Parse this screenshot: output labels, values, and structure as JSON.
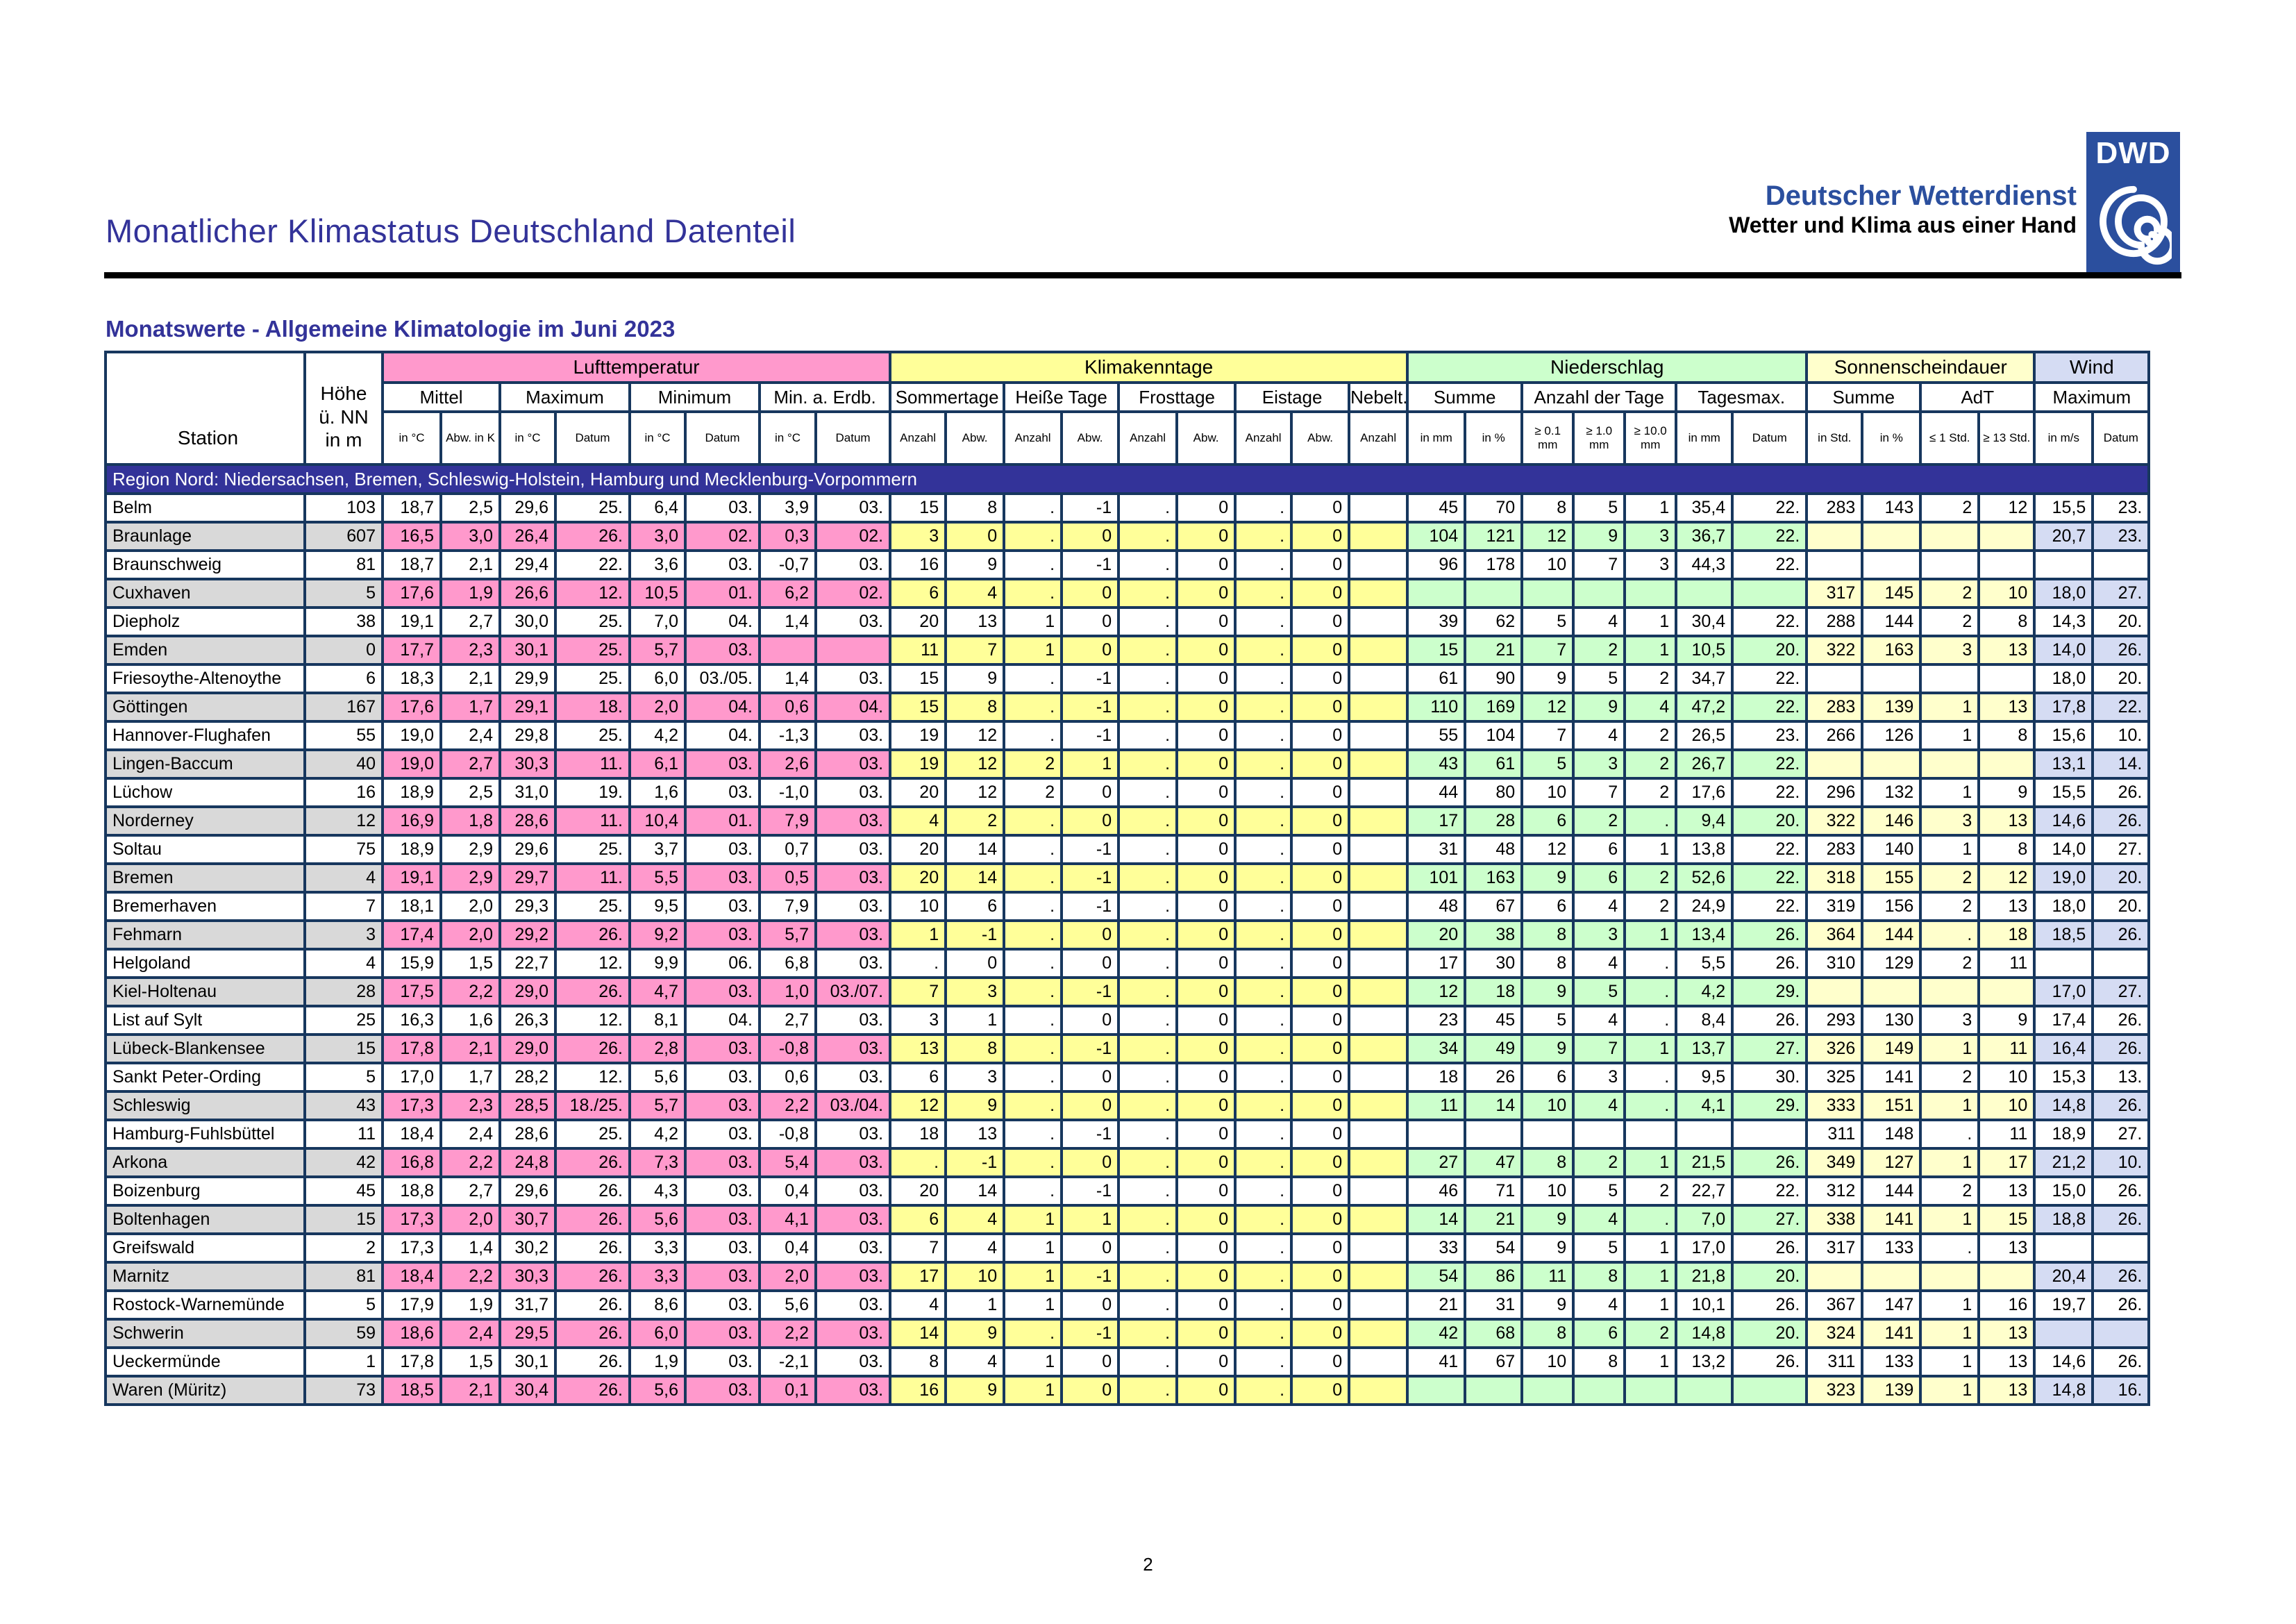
{
  "page": {
    "title": "Monatlicher Klimastatus Deutschland Datenteil",
    "page_number": "2"
  },
  "brand": {
    "org": "Deutscher Wetterdienst",
    "tagline": "Wetter und Klima aus einer Hand",
    "abbr": "DWD"
  },
  "colors": {
    "accent_blue": "#333399",
    "region_blue": "#333399",
    "border": "#17375E",
    "temp_pink": "#FF99CC",
    "klima_yellow": "#FFFF99",
    "nied_green": "#CCFFCC",
    "sonne_pale": "#FFFFCC",
    "wind_blue": "#D5DCF3",
    "station_gray": "#D9D9D9",
    "logo_blue": "#2B4F9E"
  },
  "table": {
    "caption": "Monatswerte - Allgemeine Klimatologie im Juni 2023",
    "station_header": "Station",
    "height_header": "Höhe ü. NN in m",
    "groups": [
      {
        "label": "Lufttemperatur",
        "colspan": 8,
        "key": "temp"
      },
      {
        "label": "Klimakenntage",
        "colspan": 9,
        "key": "klima"
      },
      {
        "label": "Niederschlag",
        "colspan": 7,
        "key": "nied"
      },
      {
        "label": "Sonnenscheindauer",
        "colspan": 4,
        "key": "sonne"
      },
      {
        "label": "Wind",
        "colspan": 2,
        "key": "wind"
      }
    ],
    "subgroups": [
      {
        "label": "Mittel",
        "colspan": 2
      },
      {
        "label": "Maximum",
        "colspan": 2
      },
      {
        "label": "Minimum",
        "colspan": 2
      },
      {
        "label": "Min. a. Erdb.",
        "colspan": 2
      },
      {
        "label": "Sommertage",
        "colspan": 2
      },
      {
        "label": "Heiße Tage",
        "colspan": 2
      },
      {
        "label": "Frosttage",
        "colspan": 2
      },
      {
        "label": "Eistage",
        "colspan": 2
      },
      {
        "label": "Nebelt.",
        "colspan": 1
      },
      {
        "label": "Summe",
        "colspan": 2
      },
      {
        "label": "Anzahl der Tage",
        "colspan": 3
      },
      {
        "label": "Tagesmax.",
        "colspan": 2
      },
      {
        "label": "Summe",
        "colspan": 2
      },
      {
        "label": "AdT",
        "colspan": 2
      },
      {
        "label": "Maximum",
        "colspan": 2
      }
    ],
    "units": [
      "in °C",
      "Abw. in K",
      "in °C",
      "Datum",
      "in °C",
      "Datum",
      "in °C",
      "Datum",
      "Anzahl",
      "Abw.",
      "Anzahl",
      "Abw.",
      "Anzahl",
      "Abw.",
      "Anzahl",
      "Abw.",
      "Anzahl",
      "in mm",
      "in %",
      "≥ 0.1 mm",
      "≥ 1.0 mm",
      "≥ 10.0 mm",
      "in mm",
      "Datum",
      "in Std.",
      "in %",
      "≤ 1 Std.",
      "≥ 13 Std.",
      "in m/s",
      "Datum"
    ],
    "region": "Region Nord: Niedersachsen, Bremen, Schleswig-Holstein, Hamburg und Mecklenburg-Vorpommern",
    "rows": [
      [
        "Belm",
        "103",
        "18,7",
        "2,5",
        "29,6",
        "25.",
        "6,4",
        "03.",
        "3,9",
        "03.",
        "15",
        "8",
        ".",
        "-1",
        ".",
        "0",
        ".",
        "0",
        "",
        "45",
        "70",
        "8",
        "5",
        "1",
        "35,4",
        "22.",
        "283",
        "143",
        "2",
        "12",
        "15,5",
        "23."
      ],
      [
        "Braunlage",
        "607",
        "16,5",
        "3,0",
        "26,4",
        "26.",
        "3,0",
        "02.",
        "0,3",
        "02.",
        "3",
        "0",
        ".",
        "0",
        ".",
        "0",
        ".",
        "0",
        "",
        "104",
        "121",
        "12",
        "9",
        "3",
        "36,7",
        "22.",
        "",
        "",
        "",
        "",
        "20,7",
        "23."
      ],
      [
        "Braunschweig",
        "81",
        "18,7",
        "2,1",
        "29,4",
        "22.",
        "3,6",
        "03.",
        "-0,7",
        "03.",
        "16",
        "9",
        ".",
        "-1",
        ".",
        "0",
        ".",
        "0",
        "",
        "96",
        "178",
        "10",
        "7",
        "3",
        "44,3",
        "22.",
        "",
        "",
        "",
        "",
        "",
        ""
      ],
      [
        "Cuxhaven",
        "5",
        "17,6",
        "1,9",
        "26,6",
        "12.",
        "10,5",
        "01.",
        "6,2",
        "02.",
        "6",
        "4",
        ".",
        "0",
        ".",
        "0",
        ".",
        "0",
        "",
        "",
        "",
        "",
        "",
        "",
        "",
        "",
        "317",
        "145",
        "2",
        "10",
        "18,0",
        "27."
      ],
      [
        "Diepholz",
        "38",
        "19,1",
        "2,7",
        "30,0",
        "25.",
        "7,0",
        "04.",
        "1,4",
        "03.",
        "20",
        "13",
        "1",
        "0",
        ".",
        "0",
        ".",
        "0",
        "",
        "39",
        "62",
        "5",
        "4",
        "1",
        "30,4",
        "22.",
        "288",
        "144",
        "2",
        "8",
        "14,3",
        "20."
      ],
      [
        "Emden",
        "0",
        "17,7",
        "2,3",
        "30,1",
        "25.",
        "5,7",
        "03.",
        "",
        "",
        "11",
        "7",
        "1",
        "0",
        ".",
        "0",
        ".",
        "0",
        "",
        "15",
        "21",
        "7",
        "2",
        "1",
        "10,5",
        "20.",
        "322",
        "163",
        "3",
        "13",
        "14,0",
        "26."
      ],
      [
        "Friesoythe-Altenoythe",
        "6",
        "18,3",
        "2,1",
        "29,9",
        "25.",
        "6,0",
        "03./05.",
        "1,4",
        "03.",
        "15",
        "9",
        ".",
        "-1",
        ".",
        "0",
        ".",
        "0",
        "",
        "61",
        "90",
        "9",
        "5",
        "2",
        "34,7",
        "22.",
        "",
        "",
        "",
        "",
        "18,0",
        "20."
      ],
      [
        "Göttingen",
        "167",
        "17,6",
        "1,7",
        "29,1",
        "18.",
        "2,0",
        "04.",
        "0,6",
        "04.",
        "15",
        "8",
        ".",
        "-1",
        ".",
        "0",
        ".",
        "0",
        "",
        "110",
        "169",
        "12",
        "9",
        "4",
        "47,2",
        "22.",
        "283",
        "139",
        "1",
        "13",
        "17,8",
        "22."
      ],
      [
        "Hannover-Flughafen",
        "55",
        "19,0",
        "2,4",
        "29,8",
        "25.",
        "4,2",
        "04.",
        "-1,3",
        "03.",
        "19",
        "12",
        ".",
        "-1",
        ".",
        "0",
        ".",
        "0",
        "",
        "55",
        "104",
        "7",
        "4",
        "2",
        "26,5",
        "23.",
        "266",
        "126",
        "1",
        "8",
        "15,6",
        "10."
      ],
      [
        "Lingen-Baccum",
        "40",
        "19,0",
        "2,7",
        "30,3",
        "11.",
        "6,1",
        "03.",
        "2,6",
        "03.",
        "19",
        "12",
        "2",
        "1",
        ".",
        "0",
        ".",
        "0",
        "",
        "43",
        "61",
        "5",
        "3",
        "2",
        "26,7",
        "22.",
        "",
        "",
        "",
        "",
        "13,1",
        "14."
      ],
      [
        "Lüchow",
        "16",
        "18,9",
        "2,5",
        "31,0",
        "19.",
        "1,6",
        "03.",
        "-1,0",
        "03.",
        "20",
        "12",
        "2",
        "0",
        ".",
        "0",
        ".",
        "0",
        "",
        "44",
        "80",
        "10",
        "7",
        "2",
        "17,6",
        "22.",
        "296",
        "132",
        "1",
        "9",
        "15,5",
        "26."
      ],
      [
        "Norderney",
        "12",
        "16,9",
        "1,8",
        "28,6",
        "11.",
        "10,4",
        "01.",
        "7,9",
        "03.",
        "4",
        "2",
        ".",
        "0",
        ".",
        "0",
        ".",
        "0",
        "",
        "17",
        "28",
        "6",
        "2",
        ".",
        "9,4",
        "20.",
        "322",
        "146",
        "3",
        "13",
        "14,6",
        "26."
      ],
      [
        "Soltau",
        "75",
        "18,9",
        "2,9",
        "29,6",
        "25.",
        "3,7",
        "03.",
        "0,7",
        "03.",
        "20",
        "14",
        ".",
        "-1",
        ".",
        "0",
        ".",
        "0",
        "",
        "31",
        "48",
        "12",
        "6",
        "1",
        "13,8",
        "22.",
        "283",
        "140",
        "1",
        "8",
        "14,0",
        "27."
      ],
      [
        "Bremen",
        "4",
        "19,1",
        "2,9",
        "29,7",
        "11.",
        "5,5",
        "03.",
        "0,5",
        "03.",
        "20",
        "14",
        ".",
        "-1",
        ".",
        "0",
        ".",
        "0",
        "",
        "101",
        "163",
        "9",
        "6",
        "2",
        "52,6",
        "22.",
        "318",
        "155",
        "2",
        "12",
        "19,0",
        "20."
      ],
      [
        "Bremerhaven",
        "7",
        "18,1",
        "2,0",
        "29,3",
        "25.",
        "9,5",
        "03.",
        "7,9",
        "03.",
        "10",
        "6",
        ".",
        "-1",
        ".",
        "0",
        ".",
        "0",
        "",
        "48",
        "67",
        "6",
        "4",
        "2",
        "24,9",
        "22.",
        "319",
        "156",
        "2",
        "13",
        "18,0",
        "20."
      ],
      [
        "Fehmarn",
        "3",
        "17,4",
        "2,0",
        "29,2",
        "26.",
        "9,2",
        "03.",
        "5,7",
        "03.",
        "1",
        "-1",
        ".",
        "0",
        ".",
        "0",
        ".",
        "0",
        "",
        "20",
        "38",
        "8",
        "3",
        "1",
        "13,4",
        "26.",
        "364",
        "144",
        ".",
        "18",
        "18,5",
        "26."
      ],
      [
        "Helgoland",
        "4",
        "15,9",
        "1,5",
        "22,7",
        "12.",
        "9,9",
        "06.",
        "6,8",
        "03.",
        ".",
        "0",
        ".",
        "0",
        ".",
        "0",
        ".",
        "0",
        "",
        "17",
        "30",
        "8",
        "4",
        ".",
        "5,5",
        "26.",
        "310",
        "129",
        "2",
        "11",
        "",
        ""
      ],
      [
        "Kiel-Holtenau",
        "28",
        "17,5",
        "2,2",
        "29,0",
        "26.",
        "4,7",
        "03.",
        "1,0",
        "03./07.",
        "7",
        "3",
        ".",
        "-1",
        ".",
        "0",
        ".",
        "0",
        "",
        "12",
        "18",
        "9",
        "5",
        ".",
        "4,2",
        "29.",
        "",
        "",
        "",
        "",
        "17,0",
        "27."
      ],
      [
        "List auf Sylt",
        "25",
        "16,3",
        "1,6",
        "26,3",
        "12.",
        "8,1",
        "04.",
        "2,7",
        "03.",
        "3",
        "1",
        ".",
        "0",
        ".",
        "0",
        ".",
        "0",
        "",
        "23",
        "45",
        "5",
        "4",
        ".",
        "8,4",
        "26.",
        "293",
        "130",
        "3",
        "9",
        "17,4",
        "26."
      ],
      [
        "Lübeck-Blankensee",
        "15",
        "17,8",
        "2,1",
        "29,0",
        "26.",
        "2,8",
        "03.",
        "-0,8",
        "03.",
        "13",
        "8",
        ".",
        "-1",
        ".",
        "0",
        ".",
        "0",
        "",
        "34",
        "49",
        "9",
        "7",
        "1",
        "13,7",
        "27.",
        "326",
        "149",
        "1",
        "11",
        "16,4",
        "26."
      ],
      [
        "Sankt Peter-Ording",
        "5",
        "17,0",
        "1,7",
        "28,2",
        "12.",
        "5,6",
        "03.",
        "0,6",
        "03.",
        "6",
        "3",
        ".",
        "0",
        ".",
        "0",
        ".",
        "0",
        "",
        "18",
        "26",
        "6",
        "3",
        ".",
        "9,5",
        "30.",
        "325",
        "141",
        "2",
        "10",
        "15,3",
        "13."
      ],
      [
        "Schleswig",
        "43",
        "17,3",
        "2,3",
        "28,5",
        "18./25.",
        "5,7",
        "03.",
        "2,2",
        "03./04.",
        "12",
        "9",
        ".",
        "0",
        ".",
        "0",
        ".",
        "0",
        "",
        "11",
        "14",
        "10",
        "4",
        ".",
        "4,1",
        "29.",
        "333",
        "151",
        "1",
        "10",
        "14,8",
        "26."
      ],
      [
        "Hamburg-Fuhlsbüttel",
        "11",
        "18,4",
        "2,4",
        "28,6",
        "25.",
        "4,2",
        "03.",
        "-0,8",
        "03.",
        "18",
        "13",
        ".",
        "-1",
        ".",
        "0",
        ".",
        "0",
        "",
        "",
        "",
        "",
        "",
        "",
        "",
        "",
        "311",
        "148",
        ".",
        "11",
        "18,9",
        "27."
      ],
      [
        "Arkona",
        "42",
        "16,8",
        "2,2",
        "24,8",
        "26.",
        "7,3",
        "03.",
        "5,4",
        "03.",
        ".",
        "-1",
        ".",
        "0",
        ".",
        "0",
        ".",
        "0",
        "",
        "27",
        "47",
        "8",
        "2",
        "1",
        "21,5",
        "26.",
        "349",
        "127",
        "1",
        "17",
        "21,2",
        "10."
      ],
      [
        "Boizenburg",
        "45",
        "18,8",
        "2,7",
        "29,6",
        "26.",
        "4,3",
        "03.",
        "0,4",
        "03.",
        "20",
        "14",
        ".",
        "-1",
        ".",
        "0",
        ".",
        "0",
        "",
        "46",
        "71",
        "10",
        "5",
        "2",
        "22,7",
        "22.",
        "312",
        "144",
        "2",
        "13",
        "15,0",
        "26."
      ],
      [
        "Boltenhagen",
        "15",
        "17,3",
        "2,0",
        "30,7",
        "26.",
        "5,6",
        "03.",
        "4,1",
        "03.",
        "6",
        "4",
        "1",
        "1",
        ".",
        "0",
        ".",
        "0",
        "",
        "14",
        "21",
        "9",
        "4",
        ".",
        "7,0",
        "27.",
        "338",
        "141",
        "1",
        "15",
        "18,8",
        "26."
      ],
      [
        "Greifswald",
        "2",
        "17,3",
        "1,4",
        "30,2",
        "26.",
        "3,3",
        "03.",
        "0,4",
        "03.",
        "7",
        "4",
        "1",
        "0",
        ".",
        "0",
        ".",
        "0",
        "",
        "33",
        "54",
        "9",
        "5",
        "1",
        "17,0",
        "26.",
        "317",
        "133",
        ".",
        "13",
        "",
        ""
      ],
      [
        "Marnitz",
        "81",
        "18,4",
        "2,2",
        "30,3",
        "26.",
        "3,3",
        "03.",
        "2,0",
        "03.",
        "17",
        "10",
        "1",
        "-1",
        ".",
        "0",
        ".",
        "0",
        "",
        "54",
        "86",
        "11",
        "8",
        "1",
        "21,8",
        "20.",
        "",
        "",
        "",
        "",
        "20,4",
        "26."
      ],
      [
        "Rostock-Warnemünde",
        "5",
        "17,9",
        "1,9",
        "31,7",
        "26.",
        "8,6",
        "03.",
        "5,6",
        "03.",
        "4",
        "1",
        "1",
        "0",
        ".",
        "0",
        ".",
        "0",
        "",
        "21",
        "31",
        "9",
        "4",
        "1",
        "10,1",
        "26.",
        "367",
        "147",
        "1",
        "16",
        "19,7",
        "26."
      ],
      [
        "Schwerin",
        "59",
        "18,6",
        "2,4",
        "29,5",
        "26.",
        "6,0",
        "03.",
        "2,2",
        "03.",
        "14",
        "9",
        ".",
        "-1",
        ".",
        "0",
        ".",
        "0",
        "",
        "42",
        "68",
        "8",
        "6",
        "2",
        "14,8",
        "20.",
        "324",
        "141",
        "1",
        "13",
        "",
        ""
      ],
      [
        "Ueckermünde",
        "1",
        "17,8",
        "1,5",
        "30,1",
        "26.",
        "1,9",
        "03.",
        "-2,1",
        "03.",
        "8",
        "4",
        "1",
        "0",
        ".",
        "0",
        ".",
        "0",
        "",
        "41",
        "67",
        "10",
        "8",
        "1",
        "13,2",
        "26.",
        "311",
        "133",
        "1",
        "13",
        "14,6",
        "26."
      ],
      [
        "Waren (Müritz)",
        "73",
        "18,5",
        "2,1",
        "30,4",
        "26.",
        "5,6",
        "03.",
        "0,1",
        "03.",
        "16",
        "9",
        "1",
        "0",
        ".",
        "0",
        ".",
        "0",
        "",
        "",
        "",
        "",
        "",
        "",
        "",
        "",
        "323",
        "139",
        "1",
        "13",
        "14,8",
        "16."
      ]
    ]
  }
}
